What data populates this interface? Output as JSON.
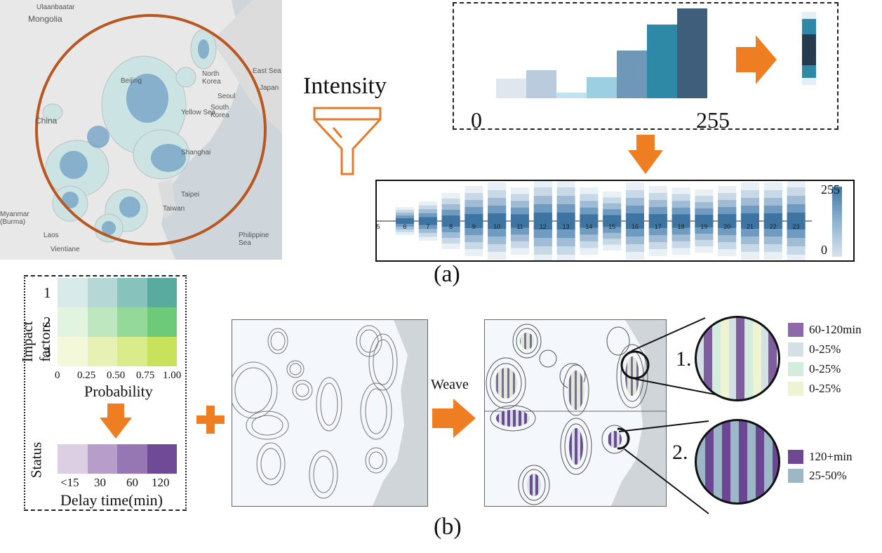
{
  "top_map": {
    "labels": [
      "Ulaanbaatar",
      "Mongolia",
      "North Korea",
      "East Sea",
      "Japan",
      "Seoul",
      "South Korea",
      "Yellow Sea",
      "China",
      "Shanghai",
      "Taipei",
      "Taiwan",
      "Myanmar (Burma)",
      "Laos",
      "Vientiane",
      "Philippine Sea",
      "Beijing"
    ]
  },
  "filter": {
    "label": "Intensity"
  },
  "histogram": {
    "axis_min": "0",
    "axis_max": "255",
    "values": [
      28,
      40,
      8,
      30,
      68,
      105,
      128
    ],
    "colors": [
      "#dfe6ee",
      "#b9cbdc",
      "#bfe2ee",
      "#9dcfe3",
      "#6f97b8",
      "#2e89a7",
      "#3e5e7c"
    ],
    "strip_colors": [
      "#e2f0f6",
      "#2e89a7",
      "#263b4e",
      "#263b4e",
      "#2e89a7",
      "#e2f0f6"
    ]
  },
  "timeline": {
    "hours": [
      "5",
      "6",
      "7",
      "8",
      "9",
      "10",
      "11",
      "12",
      "13",
      "14",
      "15",
      "16",
      "17",
      "18",
      "19",
      "20",
      "21",
      "22",
      "23"
    ],
    "magnitudes": [
      18,
      20,
      28,
      40,
      50,
      55,
      48,
      60,
      60,
      48,
      42,
      55,
      50,
      48,
      45,
      50,
      55,
      55,
      60
    ],
    "scale_max": "255",
    "scale_min": "0"
  },
  "panel_a_caption": "(a)",
  "impact_legend": {
    "ylabel": "Impact factors",
    "rows": [
      "1",
      "2",
      "3"
    ],
    "xticks": [
      "0",
      "0.25",
      "0.50",
      "0.75",
      "1.00"
    ],
    "xlabel": "Probability",
    "colors": [
      [
        "#d8ebea",
        "#b5d7d6",
        "#88c2bd",
        "#5aab9f"
      ],
      [
        "#e0f4e0",
        "#bfe7bf",
        "#95d99a",
        "#6cca79"
      ],
      [
        "#f4f8da",
        "#e7f1b3",
        "#d9eb8a",
        "#c9e25c"
      ]
    ]
  },
  "status_legend": {
    "ylabel": "Status",
    "ticks": [
      "<15",
      "30",
      "60",
      "120"
    ],
    "xlabel": "Delay time(min)",
    "colors": [
      "#dccfe3",
      "#b79dca",
      "#9777b3",
      "#6f4a96"
    ]
  },
  "weave_label": "Weave",
  "zoom_1": {
    "number": "1.",
    "legend": [
      {
        "label": "60-120min",
        "color": "#8e68a8"
      },
      {
        "label": "0-25%",
        "color": "#d3e0e6"
      },
      {
        "label": "0-25%",
        "color": "#d3ecdc"
      },
      {
        "label": "0-25%",
        "color": "#eef4d2"
      }
    ]
  },
  "zoom_2": {
    "number": "2.",
    "legend": [
      {
        "label": "120+min",
        "color": "#6e4893"
      },
      {
        "label": "25-50%",
        "color": "#9cb8c6"
      }
    ]
  },
  "panel_b_caption": "(b)"
}
